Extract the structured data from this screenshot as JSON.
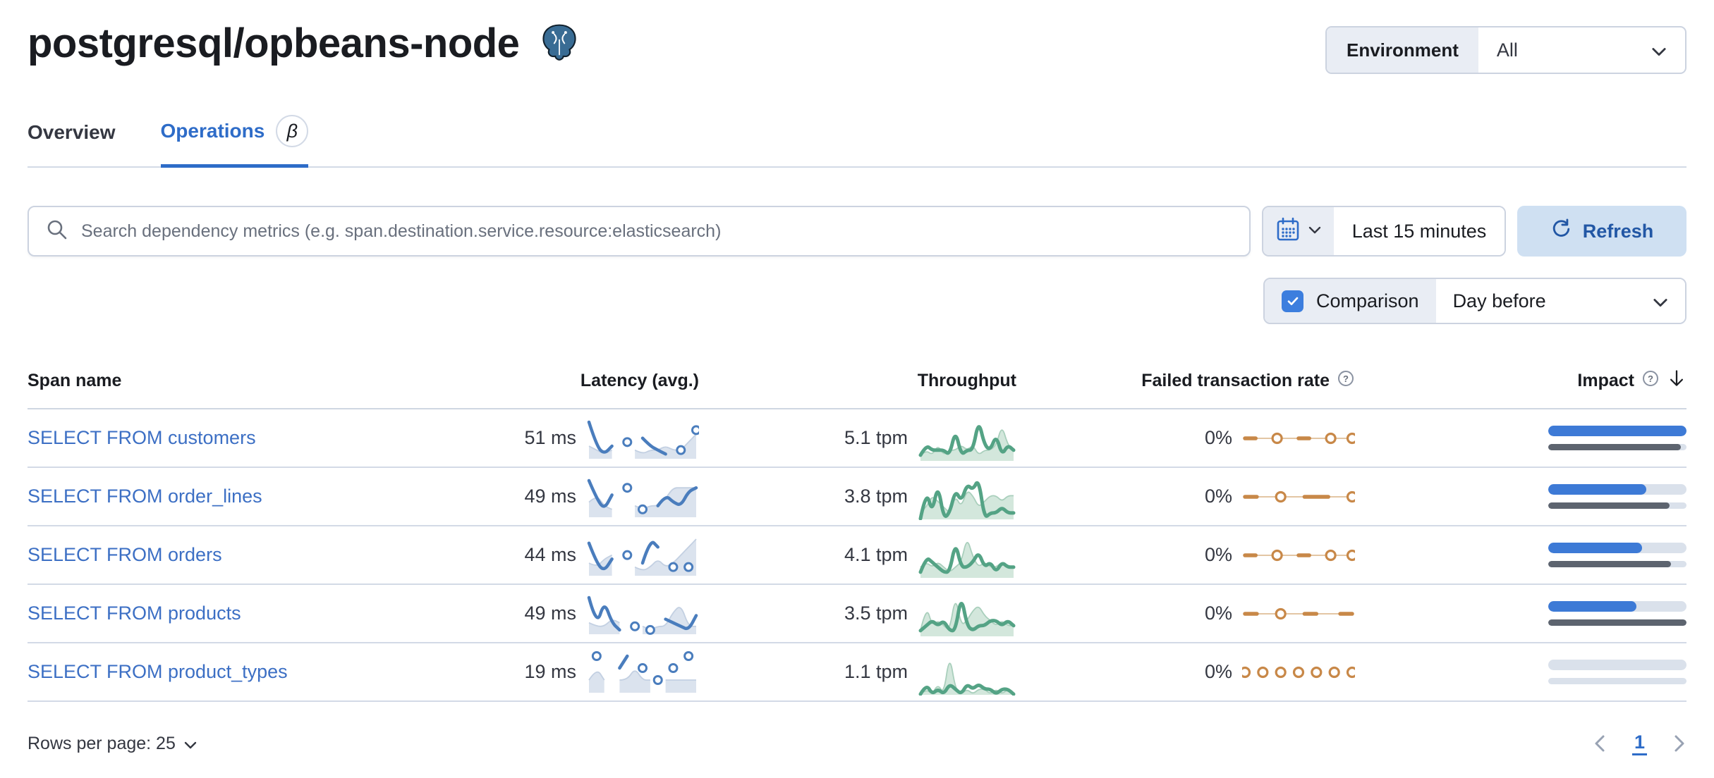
{
  "page": {
    "title": "postgresql/opbeans-node"
  },
  "environment": {
    "label": "Environment",
    "value": "All"
  },
  "tabs": [
    {
      "label": "Overview",
      "active": false
    },
    {
      "label": "Operations",
      "active": true,
      "beta_badge": "β"
    }
  ],
  "toolbar": {
    "search_placeholder": "Search dependency metrics (e.g. span.destination.service.resource:elasticsearch)",
    "time_range": "Last 15 minutes",
    "refresh_label": "Refresh"
  },
  "comparison": {
    "label": "Comparison",
    "checked": true,
    "value": "Day before"
  },
  "table": {
    "columns": {
      "span_name": "Span name",
      "latency": "Latency (avg.)",
      "throughput": "Throughput",
      "failed_rate": "Failed transaction rate",
      "impact": "Impact"
    },
    "sorted_by": "Impact",
    "sort_direction": "desc",
    "rows": [
      {
        "span_name": "SELECT FROM customers",
        "latency": "51 ms",
        "throughput": "5.1 tpm",
        "failed_rate": "0%",
        "impact": 100,
        "impact_prev": 96,
        "latency_spark": {
          "current": [
            9,
            3,
            1,
            3,
            null,
            4,
            null,
            5,
            3,
            2,
            1,
            null,
            2,
            null,
            7
          ],
          "comparison": [
            3,
            2,
            1,
            2,
            null,
            null,
            2,
            1,
            2,
            2,
            3,
            2,
            2,
            4,
            6
          ]
        },
        "throughput_spark": {
          "current": [
            1,
            3,
            2,
            2,
            2,
            1,
            6,
            1,
            2,
            2,
            8,
            3,
            2,
            5,
            1,
            3,
            2
          ],
          "comparison": [
            1,
            2,
            1,
            3,
            1,
            2,
            2,
            3,
            2,
            3,
            1,
            2,
            2,
            3,
            7,
            3,
            2
          ]
        },
        "failed_spark": {
          "current": [
            0,
            0,
            null,
            0,
            null,
            0,
            0,
            null,
            0,
            null,
            0
          ],
          "comparison": "line"
        }
      },
      {
        "span_name": "SELECT FROM order_lines",
        "latency": "49 ms",
        "throughput": "3.8 tpm",
        "failed_rate": "0%",
        "impact": 71,
        "impact_prev": 88,
        "latency_spark": {
          "current": [
            10,
            5,
            2,
            6,
            null,
            8,
            null,
            2,
            null,
            3,
            6,
            4,
            3,
            7,
            8
          ],
          "comparison": [
            4,
            6,
            3,
            2,
            null,
            null,
            3,
            2,
            3,
            3,
            5,
            8,
            8,
            8,
            8
          ]
        },
        "throughput_spark": {
          "current": [
            0,
            5,
            1,
            6,
            0,
            1,
            5,
            3,
            6,
            5,
            7,
            0,
            1,
            1,
            2,
            1,
            1
          ],
          "comparison": [
            1,
            2,
            4,
            3,
            2,
            1,
            4,
            2,
            5,
            4,
            2,
            3,
            4,
            4,
            3,
            4,
            4
          ]
        },
        "failed_spark": {
          "current": [
            0,
            0,
            null,
            0,
            null,
            0,
            0,
            0,
            null,
            0
          ],
          "comparison": "line"
        }
      },
      {
        "span_name": "SELECT FROM orders",
        "latency": "44 ms",
        "throughput": "4.1 tpm",
        "failed_rate": "0%",
        "impact": 68,
        "impact_prev": 89,
        "latency_spark": {
          "current": [
            8,
            3,
            1,
            4,
            null,
            5,
            null,
            3,
            9,
            7,
            null,
            2,
            null,
            2,
            null
          ],
          "comparison": [
            3,
            2,
            4,
            5,
            null,
            null,
            2,
            1,
            2,
            4,
            2,
            3,
            5,
            7,
            9
          ]
        },
        "throughput_spark": {
          "current": [
            1,
            4,
            3,
            2,
            1,
            1,
            7,
            2,
            2,
            3,
            5,
            2,
            3,
            1,
            3,
            2,
            2
          ],
          "comparison": [
            2,
            3,
            2,
            3,
            2,
            1,
            2,
            3,
            8,
            4,
            2,
            3,
            2,
            2,
            3,
            2,
            2
          ]
        },
        "failed_spark": {
          "current": [
            0,
            0,
            null,
            0,
            null,
            0,
            0,
            null,
            0,
            null,
            0
          ],
          "comparison": "line"
        }
      },
      {
        "span_name": "SELECT FROM products",
        "latency": "49 ms",
        "throughput": "3.5 tpm",
        "failed_rate": "0%",
        "impact": 64,
        "impact_prev": 100,
        "latency_spark": {
          "current": [
            10,
            2,
            9,
            3,
            1,
            null,
            2,
            null,
            1,
            null,
            4,
            3,
            2,
            1,
            5
          ],
          "comparison": [
            3,
            2,
            2,
            4,
            3,
            null,
            null,
            2,
            1,
            2,
            2,
            6,
            8,
            2,
            2
          ]
        },
        "throughput_spark": {
          "current": [
            1,
            2,
            3,
            2,
            3,
            1,
            1,
            8,
            2,
            1,
            2,
            2,
            3,
            3,
            2,
            3,
            2
          ],
          "comparison": [
            1,
            6,
            2,
            3,
            2,
            1,
            8,
            2,
            3,
            5,
            6,
            4,
            3,
            2,
            3,
            2,
            2
          ]
        },
        "failed_spark": {
          "current": [
            0,
            0,
            null,
            0,
            null,
            0,
            0,
            null,
            0,
            0
          ],
          "comparison": "line"
        }
      },
      {
        "span_name": "SELECT FROM product_types",
        "latency": "19 ms",
        "throughput": "1.1 tpm",
        "failed_rate": "0%",
        "impact": 0,
        "impact_prev": 0,
        "latency_spark": {
          "current": [
            null,
            3,
            null,
            null,
            2,
            3,
            null,
            2,
            null,
            1,
            null,
            2,
            null,
            3,
            null
          ],
          "comparison": [
            1,
            2,
            1,
            null,
            1,
            1,
            2,
            1,
            1,
            null,
            1,
            1,
            1,
            1,
            1
          ]
        },
        "throughput_spark": {
          "current": [
            0,
            2,
            0,
            1,
            0,
            2,
            1,
            0,
            2,
            1,
            2,
            1,
            1,
            0,
            1,
            1,
            0
          ],
          "comparison": [
            0,
            1,
            0,
            2,
            0,
            8,
            1,
            0,
            1,
            0,
            1,
            1,
            0,
            1,
            0,
            1,
            0
          ]
        },
        "failed_spark": {
          "current": [
            0,
            null,
            0,
            null,
            0,
            null,
            0,
            null,
            0,
            null,
            0,
            null,
            0
          ],
          "comparison": "none"
        }
      }
    ]
  },
  "footer": {
    "rows_per_page": "Rows per page: 25",
    "page": "1"
  },
  "icons": {
    "help": "?",
    "beta": "β"
  },
  "colors": {
    "primary": "#2e6cc8",
    "link": "#3c6fc4",
    "latency_line": "#4a7dbd",
    "latency_comp_fill": "#dbe3ee",
    "latency_comp_stroke": "#c3d0e2",
    "throughput_line": "#54a385",
    "throughput_comp_fill": "#d3e7dc",
    "throughput_comp_stroke": "#a9cfbc",
    "failed_line": "#c88848",
    "failed_comp_stroke": "#e3c6a4",
    "impact_current": "#3d7ad6",
    "impact_previous": "#5d646f",
    "impact_track": "#dae1eb",
    "refresh_bg": "#cfe0f2",
    "control_bg": "#e9edf4",
    "checkbox": "#3c7ede"
  }
}
